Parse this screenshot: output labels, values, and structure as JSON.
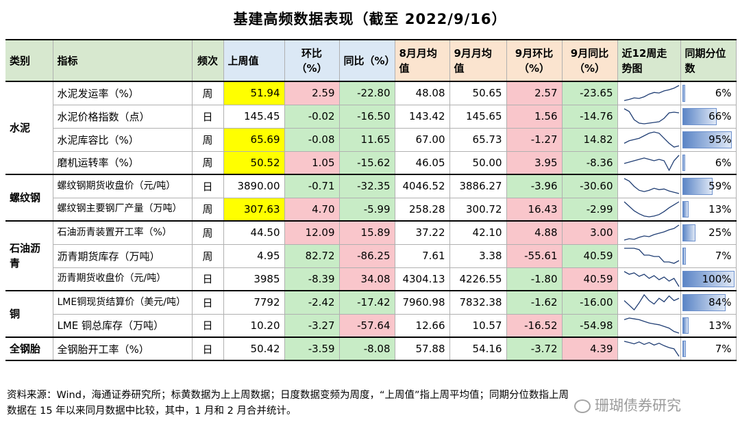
{
  "title": "基建高频数据表现（截至 2022/9/16）",
  "headers": {
    "category": "类别",
    "indicator": "指标",
    "frequency": "频次",
    "last_week": "上周值",
    "wow": "环比（%）",
    "yoy": "同比（%）",
    "aug_avg": "8月月均值",
    "sep_avg": "9月月均值",
    "sep_mom": "9月环比（%）",
    "sep_yoy": "9月同比（%）",
    "trend": "近12周走势图",
    "percentile": "同期分位数"
  },
  "rows": [
    {
      "category": "水泥",
      "indicator": "水泥发运率（%）",
      "freq": "周",
      "last": "51.94",
      "wow": "2.59",
      "yoy": "-22.80",
      "aug": "48.08",
      "sep": "50.65",
      "mom9": "2.57",
      "yoy9": "-23.65",
      "pct": "6%",
      "pct_value": 0.06,
      "spark": [
        40,
        42,
        45,
        44,
        47,
        52,
        55,
        54,
        58,
        60,
        63,
        68
      ]
    },
    {
      "category": "水泥",
      "indicator": "水泥价格指数（点）",
      "freq": "日",
      "last": "145.45",
      "wow": "-0.02",
      "yoy": "-16.50",
      "aug": "143.42",
      "sep": "145.65",
      "mom9": "1.56",
      "yoy9": "-14.76",
      "pct": "66%",
      "pct_value": 0.66,
      "spark": [
        66,
        62,
        50,
        45,
        44,
        45,
        46,
        47,
        52,
        60,
        61,
        60
      ]
    },
    {
      "category": "水泥",
      "indicator": "水泥库容比（%）",
      "freq": "周",
      "last": "65.69",
      "wow": "-0.08",
      "yoy": "11.65",
      "aug": "67.00",
      "sep": "65.73",
      "mom9": "-1.27",
      "yoy9": "14.82",
      "pct": "95%",
      "pct_value": 0.95,
      "spark": [
        58,
        60,
        61,
        62,
        64,
        66,
        67,
        66,
        62,
        58,
        55,
        56
      ]
    },
    {
      "category": "水泥",
      "indicator": "磨机运转率（%）",
      "freq": "周",
      "last": "50.52",
      "wow": "1.05",
      "yoy": "-15.62",
      "aug": "46.05",
      "sep": "50.00",
      "mom9": "3.95",
      "yoy9": "-8.36",
      "pct": "6%",
      "pct_value": 0.06,
      "spark": [
        50,
        51,
        52,
        53,
        54,
        53,
        52,
        53,
        52,
        45,
        52,
        56
      ]
    },
    {
      "category": "螺纹钢",
      "indicator": "螺纹钢期货收盘价（元/吨）",
      "freq": "日",
      "last": "3890.00",
      "wow": "-0.71",
      "yoy": "-32.35",
      "aug": "4046.52",
      "sep": "3886.27",
      "mom9": "-3.96",
      "yoy9": "-30.60",
      "pct": "59%",
      "pct_value": 0.59,
      "spark": [
        70,
        66,
        58,
        52,
        50,
        52,
        55,
        53,
        54,
        51,
        49,
        47
      ]
    },
    {
      "category": "螺纹钢",
      "indicator": "螺纹钢主要钢厂产量（万吨）",
      "freq": "周",
      "last": "307.63",
      "wow": "4.70",
      "yoy": "-5.99",
      "aug": "258.28",
      "sep": "300.72",
      "mom9": "16.43",
      "yoy9": "-2.99",
      "pct": "13%",
      "pct_value": 0.13,
      "spark": [
        66,
        60,
        54,
        50,
        47,
        46,
        47,
        49,
        53,
        58,
        62,
        66
      ]
    },
    {
      "category": "石油沥青",
      "indicator": "石油沥青装置开工率（%）",
      "freq": "周",
      "last": "44.50",
      "wow": "12.09",
      "yoy": "15.89",
      "aug": "37.22",
      "sep": "42.10",
      "mom9": "4.88",
      "yoy9": "3.00",
      "pct": "25%",
      "pct_value": 0.25,
      "spark": [
        30,
        32,
        31,
        34,
        36,
        35,
        38,
        40,
        42,
        45,
        47,
        52
      ]
    },
    {
      "category": "石油沥青",
      "indicator": "沥青期货库存（万吨）",
      "freq": "周",
      "last": "4.95",
      "wow": "82.72",
      "yoy": "-86.25",
      "aug": "7.61",
      "sep": "3.38",
      "mom9": "-55.61",
      "yoy9": "40.59",
      "pct": "7%",
      "pct_value": 0.07,
      "spark": [
        60,
        60,
        60,
        58,
        50,
        50,
        48,
        48,
        40,
        40,
        38,
        42
      ]
    },
    {
      "category": "石油沥青",
      "indicator": "沥青期货收盘价（元/吨）",
      "freq": "日",
      "last": "3985",
      "wow": "-8.39",
      "yoy": "34.08",
      "aug": "4304.13",
      "sep": "4226.55",
      "mom9": "-1.80",
      "yoy9": "40.59",
      "pct": "100%",
      "pct_value": 1.0,
      "spark": [
        62,
        58,
        60,
        55,
        58,
        52,
        56,
        50,
        54,
        48,
        52,
        40
      ]
    },
    {
      "category": "铜",
      "indicator": "LME铜现货结算价（美元/吨）",
      "freq": "日",
      "last": "7792",
      "wow": "-2.42",
      "yoy": "-17.42",
      "aug": "7960.98",
      "sep": "7832.38",
      "mom9": "-1.62",
      "yoy9": "-16.00",
      "pct": "84%",
      "pct_value": 0.84,
      "spark": [
        50,
        46,
        42,
        48,
        55,
        50,
        47,
        52,
        49,
        54,
        50,
        52
      ]
    },
    {
      "category": "铜",
      "indicator": "LME 铜总库存（万吨）",
      "freq": "日",
      "last": "10.20",
      "wow": "-3.27",
      "yoy": "-57.64",
      "aug": "12.66",
      "sep": "10.57",
      "mom9": "-16.52",
      "yoy9": "-54.98",
      "pct": "13%",
      "pct_value": 0.13,
      "spark": [
        60,
        62,
        61,
        60,
        58,
        56,
        55,
        54,
        52,
        50,
        46,
        44
      ]
    },
    {
      "category": "全钢胎",
      "indicator": "全钢胎开工率（%）",
      "freq": "日",
      "last": "50.42",
      "wow": "-3.59",
      "yoy": "-8.08",
      "aug": "57.88",
      "sep": "54.16",
      "mom9": "-3.72",
      "yoy9": "4.39",
      "pct": "7%",
      "pct_value": 0.07,
      "spark": [
        62,
        60,
        58,
        61,
        57,
        60,
        56,
        59,
        55,
        52,
        50,
        38
      ]
    }
  ],
  "categories": [
    "水泥",
    "螺纹钢",
    "石油沥青",
    "铜",
    "全钢胎"
  ],
  "footer_line1": "资料来源：Wind，海通证券研究所；标黄数据为上上周数据；日度数据变频为周度，“上周值”指上周平均值；同期分位数指上周",
  "footer_line2": "数据在 15 年以来同月数据中比较，其中，1 月和 2 月合并统计。",
  "watermark": "珊瑚债券研究",
  "colors": {
    "yellow": "#ffff00",
    "red": "#f9c6cb",
    "green": "#c8ecc6",
    "header_green": "#d7e8cf",
    "header_blue": "#dbe8f5",
    "header_peach": "#fbe4cf",
    "spark": "#1f3d73"
  }
}
